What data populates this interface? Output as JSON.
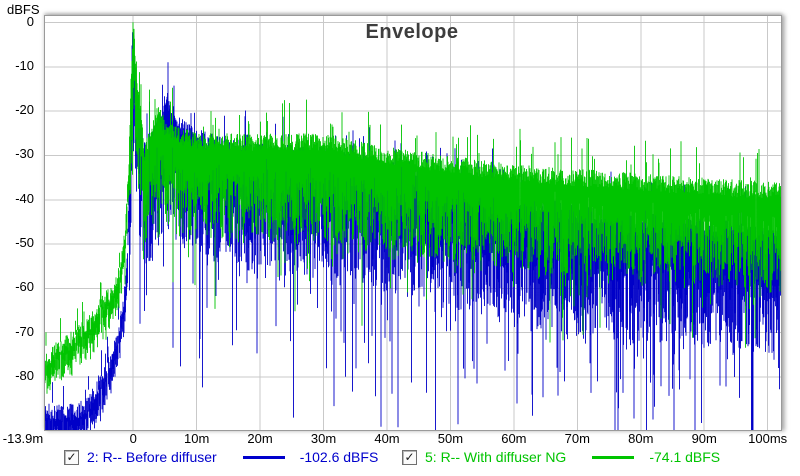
{
  "chart": {
    "title": "Envelope",
    "y_axis_unit": "dBFS"
  },
  "chart_data": {
    "type": "line",
    "title": "Envelope",
    "xlabel": "",
    "ylabel": "dBFS",
    "x_unit": "ms",
    "xlim": [
      -13.9,
      102.1
    ],
    "ylim": [
      -92,
      1.5
    ],
    "grid": true,
    "legend_position": "bottom",
    "x_ticks": [
      {
        "t": -13.9,
        "label": "-13.9m"
      },
      {
        "t": 0,
        "label": "0"
      },
      {
        "t": 10,
        "label": "10m"
      },
      {
        "t": 20,
        "label": "20m"
      },
      {
        "t": 30,
        "label": "30m"
      },
      {
        "t": 40,
        "label": "40m"
      },
      {
        "t": 50,
        "label": "50m"
      },
      {
        "t": 60,
        "label": "60m"
      },
      {
        "t": 70,
        "label": "70m"
      },
      {
        "t": 80,
        "label": "80m"
      },
      {
        "t": 90,
        "label": "90m"
      },
      {
        "t": 100,
        "label": "100ms"
      }
    ],
    "y_ticks": [
      0,
      -10,
      -20,
      -30,
      -40,
      -50,
      -60,
      -70,
      -80
    ],
    "series": [
      {
        "name": "2: R-- Before diffuser",
        "color": "#0000c8",
        "cursor_value_dbfs": -102.6,
        "upper_envelope_dbfs": [
          [
            -13.9,
            -88
          ],
          [
            -9,
            -88
          ],
          [
            -7,
            -86
          ],
          [
            -5,
            -81
          ],
          [
            -3.5,
            -76
          ],
          [
            -2.5,
            -71
          ],
          [
            -1.5,
            -64
          ],
          [
            -0.9,
            -52
          ],
          [
            -0.5,
            -30
          ],
          [
            -0.2,
            -5
          ],
          [
            0,
            -1
          ],
          [
            0.3,
            -10
          ],
          [
            0.8,
            -17
          ],
          [
            1.3,
            -25
          ],
          [
            2,
            -30
          ],
          [
            3,
            -26
          ],
          [
            4.5,
            -21
          ],
          [
            5.2,
            -16
          ],
          [
            6,
            -22
          ],
          [
            8,
            -24
          ],
          [
            10,
            -26
          ],
          [
            15,
            -28
          ],
          [
            20,
            -29
          ],
          [
            30,
            -30
          ],
          [
            40,
            -33
          ],
          [
            50,
            -36
          ],
          [
            60,
            -40
          ],
          [
            70,
            -43
          ],
          [
            80,
            -45
          ],
          [
            90,
            -46
          ],
          [
            102,
            -48
          ]
        ],
        "band_db": 25,
        "notch_prob": 0.14,
        "notch_extra_db": 34,
        "deep_notch_t_ms": 97.6,
        "seed": 11
      },
      {
        "name": "5: R-- With diffuser NG",
        "color": "#00c400",
        "cursor_value_dbfs": -74.1,
        "upper_envelope_dbfs": [
          [
            -13.9,
            -76
          ],
          [
            -10,
            -72
          ],
          [
            -7,
            -68
          ],
          [
            -5,
            -64
          ],
          [
            -3,
            -60
          ],
          [
            -2,
            -56
          ],
          [
            -1.2,
            -47
          ],
          [
            -0.7,
            -32
          ],
          [
            -0.3,
            -12
          ],
          [
            0,
            -0.5
          ],
          [
            0.4,
            -8
          ],
          [
            0.8,
            -16
          ],
          [
            1.3,
            -21
          ],
          [
            1.8,
            -30
          ],
          [
            2.5,
            -26
          ],
          [
            4,
            -20
          ],
          [
            5,
            -24
          ],
          [
            8,
            -26
          ],
          [
            12,
            -27
          ],
          [
            20,
            -27
          ],
          [
            30,
            -27
          ],
          [
            40,
            -30
          ],
          [
            50,
            -32
          ],
          [
            60,
            -34
          ],
          [
            70,
            -35
          ],
          [
            80,
            -36
          ],
          [
            90,
            -37
          ],
          [
            102,
            -38
          ]
        ],
        "band_db": 20,
        "notch_prob": 0.1,
        "notch_extra_db": 18,
        "deep_notch_t_ms": null,
        "seed": 29
      }
    ]
  },
  "legend": {
    "items": [
      {
        "label": "2: R-- Before diffuser",
        "value": "-102.6 dBFS",
        "color": "#0000cc",
        "checked": true,
        "check_glyph": "✓"
      },
      {
        "label": "5: R-- With diffuser NG",
        "value": "-74.1 dBFS",
        "color": "#00c400",
        "checked": true,
        "check_glyph": "✓"
      }
    ]
  }
}
